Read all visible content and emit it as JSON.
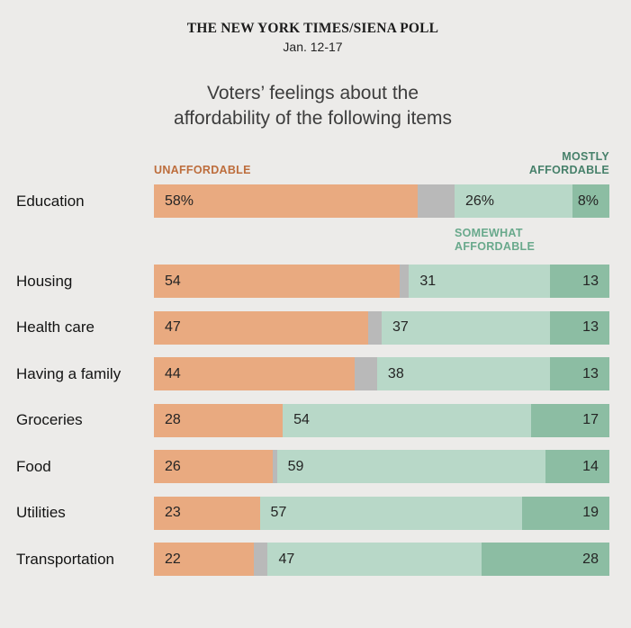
{
  "header": {
    "kicker": "THE NEW YORK TIMES/SIENA POLL",
    "dates": "Jan. 12-17"
  },
  "title": {
    "line1": "Voters’ feelings about the",
    "line2": "affordability of the following items"
  },
  "legend": {
    "unaffordable": "UNAFFORDABLE",
    "mostly_line1": "MOSTLY",
    "mostly_line2": "AFFORDABLE",
    "somewhat_line1": "SOMEWHAT",
    "somewhat_line2": "AFFORDABLE"
  },
  "colors": {
    "background": "#ecebe9",
    "unaffordable_bar": "#e9aa80",
    "gray_bar": "#b9b9b9",
    "somewhat_bar": "#b8d8c8",
    "mostly_bar": "#8cbda3",
    "unaffordable_label": "#bd6d3c",
    "mostly_label": "#46806a",
    "somewhat_label": "#69a98c",
    "title_text": "#3d3d3d"
  },
  "chart_data": {
    "type": "bar",
    "orientation": "horizontal",
    "stacked": true,
    "title": "Voters’ feelings about the affordability of the following items",
    "source": "THE NEW YORK TIMES/SIENA POLL, Jan. 12-17",
    "xlim": [
      0,
      100
    ],
    "grid": false,
    "categories": [
      "Education",
      "Housing",
      "Health care",
      "Having a family",
      "Groceries",
      "Food",
      "Utilities",
      "Transportation"
    ],
    "series": [
      {
        "name": "Unaffordable",
        "color": "#e9aa80",
        "values": [
          58,
          54,
          47,
          44,
          28,
          26,
          23,
          22
        ],
        "labels": [
          "58%",
          "54",
          "47",
          "44",
          "28",
          "26",
          "23",
          "22"
        ],
        "label_align": "left"
      },
      {
        "name": "Unlabeled (gray)",
        "color": "#b9b9b9",
        "values": [
          8,
          2,
          3,
          5,
          0,
          1,
          0,
          3
        ],
        "labels": [
          "",
          "",
          "",
          "",
          "",
          "",
          "",
          ""
        ],
        "label_align": "none"
      },
      {
        "name": "Somewhat affordable",
        "color": "#b8d8c8",
        "values": [
          26,
          31,
          37,
          38,
          54,
          59,
          57,
          47
        ],
        "labels": [
          "26%",
          "31",
          "37",
          "38",
          "54",
          "59",
          "57",
          "47"
        ],
        "label_align": "left"
      },
      {
        "name": "Mostly affordable",
        "color": "#8cbda3",
        "values": [
          8,
          13,
          13,
          13,
          17,
          14,
          19,
          28
        ],
        "labels": [
          "8%",
          "13",
          "13",
          "13",
          "17",
          "14",
          "19",
          "28"
        ],
        "label_align": "right"
      }
    ]
  }
}
